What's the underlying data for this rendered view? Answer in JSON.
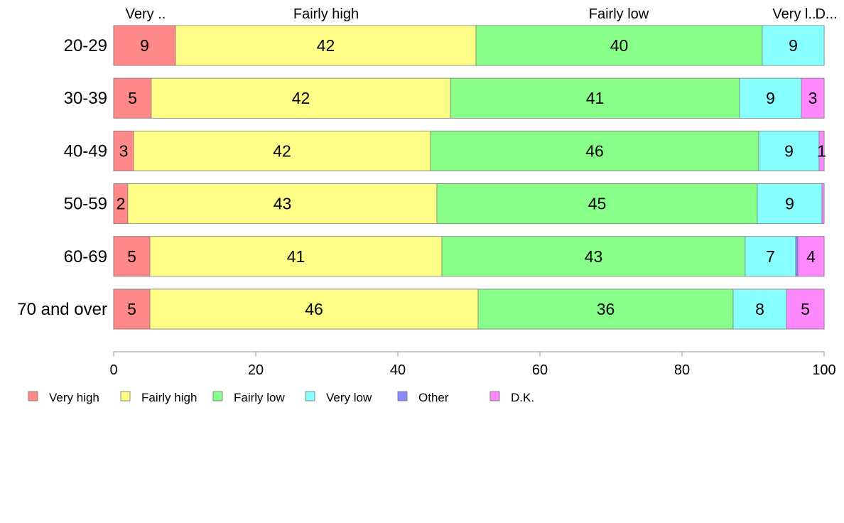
{
  "chart_data": {
    "type": "bar",
    "orientation": "horizontal",
    "stacked": true,
    "categories": [
      "20-29",
      "30-39",
      "40-49",
      "50-59",
      "60-69",
      "70 and over"
    ],
    "series": [
      {
        "name": "Very high",
        "color": "#ff8888",
        "values": [
          8.7,
          5.3,
          2.8,
          2.0,
          5.1,
          5.1
        ],
        "labels": [
          "9",
          "5",
          "3",
          "2",
          "5",
          "5"
        ]
      },
      {
        "name": "Fairly high",
        "color": "#ffff88",
        "values": [
          42.3,
          42.1,
          41.8,
          43.5,
          41.1,
          46.2
        ],
        "labels": [
          "42",
          "42",
          "42",
          "43",
          "41",
          "46"
        ]
      },
      {
        "name": "Fairly low",
        "color": "#88ff88",
        "values": [
          40.3,
          40.7,
          46.2,
          45.1,
          42.7,
          35.9
        ],
        "labels": [
          "40",
          "41",
          "46",
          "45",
          "43",
          "36"
        ]
      },
      {
        "name": "Very low",
        "color": "#88ffff",
        "values": [
          8.7,
          8.7,
          8.5,
          9.1,
          7.1,
          7.5
        ],
        "labels": [
          "9",
          "9",
          "9",
          "9",
          "7",
          "8"
        ]
      },
      {
        "name": "Other",
        "color": "#8888ff",
        "values": [
          0.0,
          0.0,
          0.0,
          0.0,
          0.3,
          0.0
        ],
        "labels": [
          "",
          "",
          "",
          "",
          "",
          ""
        ]
      },
      {
        "name": "D.K.",
        "color": "#ff88ff",
        "values": [
          0.0,
          3.2,
          0.7,
          0.3,
          3.7,
          5.3
        ],
        "labels": [
          "",
          "3",
          "1",
          "",
          "4",
          "5"
        ]
      }
    ],
    "top_labels": [
      "Very ..",
      "Fairly high",
      "Fairly low",
      "Very l..",
      "D..."
    ],
    "xlim": [
      0,
      100
    ],
    "xticks": [
      0,
      20,
      40,
      60,
      80,
      100
    ],
    "legend_position": "bottom",
    "grid": false
  }
}
